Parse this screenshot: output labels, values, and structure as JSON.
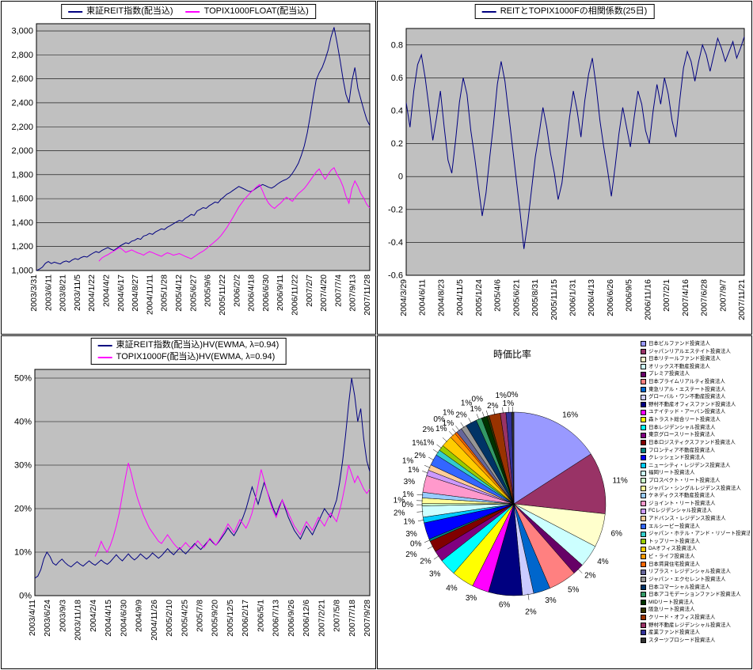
{
  "page": {
    "background": "#FFFFFF"
  },
  "colors": {
    "plot_bg": "#C0C0C0",
    "grid": "#000000",
    "navy": "#000080",
    "magenta": "#FF00FF"
  },
  "chart_data": [
    {
      "id": "index",
      "type": "line",
      "title": "",
      "legend": [
        {
          "label": "東証REIT指数(配当込)",
          "color": "#000080"
        },
        {
          "label": "TOPIX1000FLOAT(配当込)",
          "color": "#FF00FF"
        }
      ],
      "ylim": [
        1000,
        3060
      ],
      "grid": true,
      "plot_bg": "#C0C0C0",
      "y_ticks": [
        {
          "v": 1000,
          "label": "1,000"
        },
        {
          "v": 1200,
          "label": "1,200"
        },
        {
          "v": 1400,
          "label": "1,400"
        },
        {
          "v": 1600,
          "label": "1,600"
        },
        {
          "v": 1800,
          "label": "1,800"
        },
        {
          "v": 2000,
          "label": "2,000"
        },
        {
          "v": 2200,
          "label": "2,200"
        },
        {
          "v": 2400,
          "label": "2,400"
        },
        {
          "v": 2600,
          "label": "2,600"
        },
        {
          "v": 2800,
          "label": "2,800"
        },
        {
          "v": 3000,
          "label": "3,000"
        }
      ],
      "x_labels": [
        "2003/3/31",
        "2003/6/11",
        "2003/8/21",
        "2003/11/5",
        "2004/1/22",
        "2004/4/2",
        "2004/6/17",
        "2004/8/27",
        "2004/11/11",
        "2005/1/28",
        "2005/4/12",
        "2005/6/27",
        "2005/9/6",
        "2005/11/22",
        "2006/2/2",
        "2006/4/18",
        "2006/6/30",
        "2006/9/11",
        "2006/11/22",
        "2007/2/7",
        "2007/4/20",
        "2007/7/4",
        "2007/9/13",
        "2007/11/28"
      ],
      "series": [
        {
          "name": "東証REIT指数(配当込)",
          "color": "#000080",
          "x_start_frac": 0,
          "values": [
            1000,
            1012,
            1028,
            1060,
            1075,
            1058,
            1070,
            1062,
            1055,
            1072,
            1080,
            1070,
            1088,
            1100,
            1092,
            1108,
            1118,
            1112,
            1130,
            1145,
            1158,
            1150,
            1168,
            1180,
            1192,
            1178,
            1168,
            1185,
            1205,
            1218,
            1232,
            1225,
            1245,
            1252,
            1268,
            1260,
            1288,
            1295,
            1310,
            1302,
            1322,
            1335,
            1348,
            1342,
            1362,
            1375,
            1390,
            1405,
            1418,
            1412,
            1435,
            1450,
            1468,
            1460,
            1498,
            1510,
            1525,
            1518,
            1540,
            1555,
            1572,
            1565,
            1595,
            1615,
            1638,
            1650,
            1668,
            1685,
            1702,
            1690,
            1678,
            1665,
            1658,
            1672,
            1690,
            1705,
            1718,
            1708,
            1695,
            1688,
            1702,
            1722,
            1738,
            1752,
            1762,
            1780,
            1812,
            1850,
            1895,
            1960,
            2040,
            2150,
            2290,
            2450,
            2590,
            2650,
            2695,
            2760,
            2840,
            2950,
            3030,
            2900,
            2760,
            2600,
            2470,
            2400,
            2580,
            2695,
            2520,
            2430,
            2340,
            2260,
            2210
          ]
        },
        {
          "name": "TOPIX1000FLOAT(配当込)",
          "color": "#FF00FF",
          "x_start_frac": 0.1875,
          "values": [
            1078,
            1105,
            1120,
            1132,
            1148,
            1162,
            1178,
            1192,
            1172,
            1152,
            1162,
            1172,
            1160,
            1148,
            1140,
            1128,
            1145,
            1158,
            1150,
            1138,
            1128,
            1118,
            1135,
            1148,
            1140,
            1128,
            1135,
            1142,
            1130,
            1118,
            1108,
            1098,
            1115,
            1132,
            1148,
            1162,
            1180,
            1202,
            1222,
            1242,
            1265,
            1292,
            1325,
            1360,
            1400,
            1442,
            1485,
            1530,
            1565,
            1598,
            1625,
            1652,
            1675,
            1700,
            1718,
            1662,
            1605,
            1562,
            1535,
            1518,
            1542,
            1562,
            1588,
            1612,
            1595,
            1578,
            1610,
            1642,
            1662,
            1685,
            1718,
            1752,
            1788,
            1822,
            1848,
            1802,
            1762,
            1802,
            1838,
            1858,
            1802,
            1762,
            1702,
            1622,
            1562,
            1682,
            1748,
            1702,
            1642,
            1602,
            1552,
            1522
          ]
        }
      ]
    },
    {
      "id": "correlation",
      "type": "line",
      "title": "",
      "legend": [
        {
          "label": "REITとTOPIX1000Fの相関係数(25日)",
          "color": "#000080"
        }
      ],
      "ylim": [
        -0.6,
        0.9
      ],
      "grid": true,
      "plot_bg": "#C0C0C0",
      "y_ticks": [
        {
          "v": -0.6,
          "label": "-0.6"
        },
        {
          "v": -0.4,
          "label": "-0.4"
        },
        {
          "v": -0.2,
          "label": "-0.2"
        },
        {
          "v": 0,
          "label": "0"
        },
        {
          "v": 0.2,
          "label": "0.2"
        },
        {
          "v": 0.4,
          "label": "0.4"
        },
        {
          "v": 0.6,
          "label": "0.6"
        },
        {
          "v": 0.8,
          "label": "0.8"
        }
      ],
      "x_labels": [
        "2004/3/29",
        "2004/6/11",
        "2004/8/23",
        "2004/11/5",
        "2005/1/24",
        "2005/4/6",
        "2005/6/21",
        "2005/8/31",
        "2005/11/15",
        "2006/1/31",
        "2006/4/13",
        "2006/6/26",
        "2006/9/5",
        "2006/11/16",
        "2007/2/1",
        "2007/4/16",
        "2007/6/28",
        "2007/9/7",
        "2007/11/21"
      ],
      "series": [
        {
          "name": "REITとTOPIX1000Fの相関係数(25日)",
          "color": "#000080",
          "x_start_frac": 0,
          "values": [
            0.45,
            0.3,
            0.52,
            0.68,
            0.74,
            0.6,
            0.42,
            0.22,
            0.36,
            0.52,
            0.3,
            0.1,
            0.02,
            0.22,
            0.45,
            0.6,
            0.5,
            0.28,
            0.12,
            -0.06,
            -0.24,
            -0.1,
            0.12,
            0.32,
            0.56,
            0.7,
            0.58,
            0.38,
            0.18,
            -0.02,
            -0.22,
            -0.44,
            -0.28,
            -0.08,
            0.12,
            0.26,
            0.42,
            0.3,
            0.14,
            0.02,
            -0.14,
            -0.04,
            0.16,
            0.36,
            0.52,
            0.4,
            0.24,
            0.46,
            0.62,
            0.72,
            0.55,
            0.34,
            0.18,
            0.04,
            -0.12,
            0.06,
            0.26,
            0.42,
            0.3,
            0.18,
            0.36,
            0.52,
            0.44,
            0.28,
            0.2,
            0.4,
            0.56,
            0.44,
            0.6,
            0.5,
            0.34,
            0.24,
            0.46,
            0.66,
            0.76,
            0.7,
            0.58,
            0.7,
            0.8,
            0.74,
            0.64,
            0.74,
            0.84,
            0.78,
            0.7,
            0.76,
            0.82,
            0.72,
            0.78,
            0.85
          ]
        }
      ]
    },
    {
      "id": "volatility",
      "type": "line",
      "title": "",
      "legend": [
        {
          "label": "東証REIT指数(配当込)HV(EWMA, λ=0.94)",
          "color": "#000080"
        },
        {
          "label": "TOPIX1000F(配当込)HV(EWMA, λ=0.94)",
          "color": "#FF00FF"
        }
      ],
      "ylim": [
        0,
        52
      ],
      "grid": true,
      "plot_bg": "#C0C0C0",
      "y_ticks": [
        {
          "v": 0,
          "label": "0%"
        },
        {
          "v": 10,
          "label": "10%"
        },
        {
          "v": 20,
          "label": "20%"
        },
        {
          "v": 30,
          "label": "30%"
        },
        {
          "v": 40,
          "label": "40%"
        },
        {
          "v": 50,
          "label": "50%"
        }
      ],
      "x_labels": [
        "2003/4/11",
        "2003/6/24",
        "2003/9/3",
        "2003/11/18",
        "2004/2/4",
        "2004/4/15",
        "2004/6/30",
        "2004/9/9",
        "2004/11/26",
        "2005/2/10",
        "2005/4/25",
        "2005/7/8",
        "2005/9/20",
        "2005/12/5",
        "2006/2/17",
        "2006/5/1",
        "2006/7/13",
        "2006/9/26",
        "2006/12/6",
        "2007/2/21",
        "2007/5/8",
        "2007/7/18",
        "2007/9/28"
      ],
      "series": [
        {
          "name": "東証REIT指数(配当込)HV(EWMA, λ=0.94)",
          "color": "#000080",
          "x_start_frac": 0,
          "values": [
            4.0,
            4.5,
            6.0,
            8.5,
            10.0,
            9.0,
            7.5,
            7.0,
            7.8,
            8.4,
            7.6,
            7.0,
            6.6,
            7.2,
            7.8,
            7.2,
            6.8,
            7.4,
            8.0,
            7.4,
            7.0,
            7.6,
            8.2,
            7.6,
            7.2,
            7.8,
            8.6,
            9.4,
            8.6,
            8.0,
            8.8,
            9.6,
            8.8,
            8.2,
            8.8,
            9.6,
            9.0,
            8.4,
            9.0,
            9.8,
            9.2,
            8.6,
            9.2,
            10.0,
            10.8,
            10.0,
            9.4,
            10.2,
            11.0,
            10.2,
            9.6,
            10.4,
            11.2,
            12.0,
            11.2,
            10.6,
            11.4,
            12.2,
            13.0,
            12.2,
            11.6,
            12.4,
            13.4,
            14.4,
            15.6,
            14.6,
            13.8,
            15.0,
            16.4,
            18.0,
            20.0,
            22.5,
            25.0,
            23.0,
            21.0,
            23.5,
            26.0,
            24.0,
            22.0,
            20.0,
            18.5,
            20.5,
            22.0,
            20.0,
            18.0,
            16.5,
            15.0,
            14.0,
            13.0,
            14.5,
            16.0,
            15.0,
            14.0,
            15.5,
            17.0,
            18.5,
            20.0,
            19.0,
            18.0,
            20.0,
            22.0,
            26.0,
            31.0,
            37.0,
            44.0,
            50.0,
            46.0,
            40.0,
            43.0,
            36.0,
            31.0,
            28.5
          ]
        },
        {
          "name": "TOPIX1000F(配当込)HV(EWMA, λ=0.94)",
          "color": "#FF00FF",
          "x_start_frac": 0.18,
          "values": [
            9.0,
            10.5,
            12.5,
            11.0,
            10.0,
            11.5,
            13.5,
            16.0,
            19.0,
            23.0,
            27.0,
            30.5,
            28.0,
            25.0,
            22.5,
            20.5,
            18.5,
            17.0,
            15.5,
            14.5,
            13.5,
            12.5,
            12.0,
            13.0,
            14.0,
            13.0,
            12.0,
            11.2,
            10.6,
            11.4,
            12.2,
            11.4,
            10.8,
            11.6,
            12.6,
            11.8,
            11.0,
            12.0,
            13.2,
            12.4,
            11.6,
            12.6,
            13.8,
            15.0,
            16.5,
            15.5,
            14.5,
            16.0,
            17.5,
            16.5,
            15.5,
            17.0,
            19.0,
            22.0,
            25.5,
            29.0,
            26.5,
            24.0,
            21.5,
            19.5,
            18.0,
            20.0,
            22.0,
            20.5,
            19.0,
            17.5,
            16.0,
            15.0,
            14.0,
            15.5,
            17.0,
            16.0,
            15.0,
            16.5,
            18.0,
            17.0,
            16.0,
            17.5,
            19.0,
            18.0,
            17.0,
            19.5,
            22.5,
            26.0,
            30.0,
            28.0,
            26.0,
            27.5,
            26.0,
            24.5,
            23.5,
            24.5
          ]
        }
      ]
    },
    {
      "id": "market-cap",
      "type": "pie",
      "title": "時価比率",
      "legend_position": "right",
      "palette": [
        "#9999FF",
        "#993366",
        "#FFFFCC",
        "#CCFFFF",
        "#660066",
        "#FF8080",
        "#0066CC",
        "#CCCCFF",
        "#000080",
        "#FF00FF",
        "#FFFF00",
        "#00FFFF",
        "#800080",
        "#800000",
        "#008080",
        "#0000FF",
        "#00CCFF",
        "#CCFFFF",
        "#CCFFCC",
        "#FFFF99",
        "#99CCFF",
        "#FF99CC",
        "#CC99FF",
        "#FFCC99",
        "#3366FF",
        "#33CCCC",
        "#99CC00",
        "#FFCC00",
        "#FF9900",
        "#FF6600",
        "#666699",
        "#969696",
        "#003366",
        "#339966",
        "#003300",
        "#333300",
        "#993300",
        "#993366",
        "#333399",
        "#333333"
      ],
      "slices": [
        {
          "label": "日本ビルファンド投資法人",
          "value": 16
        },
        {
          "label": "ジャパンリアルエステイト投資法人",
          "value": 11
        },
        {
          "label": "日本リテールファンド投資法人",
          "value": 6
        },
        {
          "label": "オリックス不動産投資法人",
          "value": 4
        },
        {
          "label": "プレミア投資法人",
          "value": 2
        },
        {
          "label": "日本プライムリアルティ投資法人",
          "value": 5
        },
        {
          "label": "東急リアル・エステート投資法人",
          "value": 3
        },
        {
          "label": "グローバル・ワン不動産投資法人",
          "value": 2
        },
        {
          "label": "野村不動産オフィスファンド投資法人",
          "value": 6
        },
        {
          "label": "ユナイテッド・アーバン投資法人",
          "value": 3
        },
        {
          "label": "森トラスト総合リート投資法人",
          "value": 4
        },
        {
          "label": "日本レジデンシャル投資法人",
          "value": 3
        },
        {
          "label": "東京グロースリート投資法人",
          "value": 2
        },
        {
          "label": "日本ロジスティクスファンド投資法人",
          "value": 2
        },
        {
          "label": "フロンティア不動産投資法人",
          "value": 0.4
        },
        {
          "label": "クレッシェンド投資法人",
          "value": 3
        },
        {
          "label": "ニューシティ・レジデンス投資法人",
          "value": 1
        },
        {
          "label": "福岡リート投資法人",
          "value": 2
        },
        {
          "label": "プロスペクト・リート投資法人",
          "value": 0.4
        },
        {
          "label": "ジャパン・シングルレジデンス投資法人",
          "value": 1
        },
        {
          "label": "ケネディクス不動産投資法人",
          "value": 1
        },
        {
          "label": "ジョイント・リート投資法人",
          "value": 3
        },
        {
          "label": "FCレジデンシャル投資法人",
          "value": 1
        },
        {
          "label": "アドバンス・レジデンス投資法人",
          "value": 1
        },
        {
          "label": "エルシーピー投資法人",
          "value": 2
        },
        {
          "label": "ジャパン・ホテル・アンド・リゾート投資法人",
          "value": 1
        },
        {
          "label": "トップリート投資法人",
          "value": 1
        },
        {
          "label": "DAオフィス投資法人",
          "value": 2
        },
        {
          "label": "ビ・ライフ投資法人",
          "value": 1
        },
        {
          "label": "日本賃貸住宅投資法人",
          "value": 0.4
        },
        {
          "label": "リプラス・レジデンシャル投資法人",
          "value": 1
        },
        {
          "label": "ジャパン・エクセレント投資法人",
          "value": 1
        },
        {
          "label": "日本コマーシャル投資法人",
          "value": 2
        },
        {
          "label": "日本アコモデーションファンド投資法人",
          "value": 1
        },
        {
          "label": "MIDリート投資法人",
          "value": 1
        },
        {
          "label": "阪急リート投資法人",
          "value": 0.4
        },
        {
          "label": "クリード・オフィス投資法人",
          "value": 2
        },
        {
          "label": "野村不動産レジデンシャル投資法人",
          "value": 1
        },
        {
          "label": "産業ファンド投資法人",
          "value": 1
        },
        {
          "label": "スターツプロシード投資法人",
          "value": 0.4
        }
      ]
    }
  ]
}
